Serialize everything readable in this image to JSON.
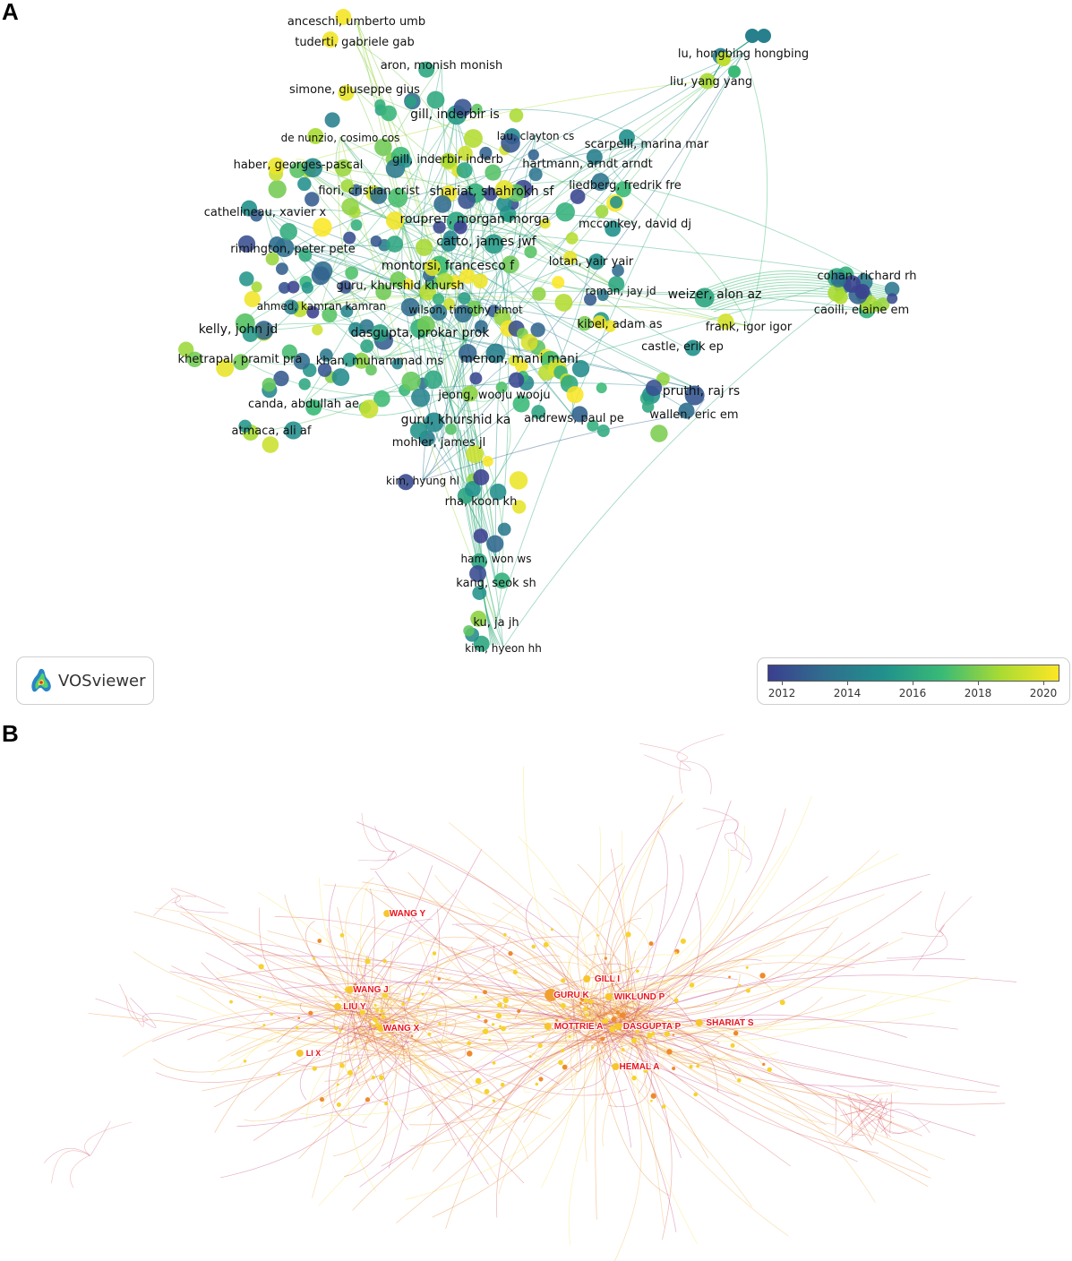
{
  "panel_a": {
    "letter": "A",
    "labels": [
      "anceschi, umberto umb",
      "tuderti, gabriele gab",
      "aron, monish monish",
      "simone, giuseppe gius",
      "gill, inderbir is",
      "de nunzio, cosimo cos",
      "lau, clayton cs",
      "scarpelli, marina mar",
      "haber, georges-pascal",
      "gill, inderbir inderb",
      "hartmann, arndt arndt",
      "fiori, cristian crist",
      "shariat, shahrokh sf",
      "liedberg, fredrik fre",
      "cathelineau, xavier x",
      "rouprет, morgan morga",
      "mcconkey, david dj",
      "catto, james jwf",
      "rimington, peter pete",
      "lotan, yair yair",
      "montorsi, francesco f",
      "cohan, richard rh",
      "guru, khurshid khursh",
      "raman, jay jd",
      "weizer, alon az",
      "ahmed, kamran kamran",
      "wilson, timothy timot",
      "caoili, elaine em",
      "kelly, john jd",
      "kibel, adam as",
      "frank, igor igor",
      "dasgupta, prokar prok",
      "castle, erik ep",
      "khetrapal, pramit pra",
      "khan, muhammad ms",
      "menon, mani mani",
      "pruthi, raj rs",
      "jeong, wooju wooju",
      "canda, abdullah ae",
      "guru, khurshid ka",
      "andrews, paul pe",
      "wallen, eric em",
      "atmaca, ali af",
      "mohler, james jl",
      "kim, hyung hl",
      "rha, koon kh",
      "ham, won ws",
      "kang, seok sh",
      "ku, ja jh",
      "kim, hyeon hh",
      "lu, hongbing hongbing",
      "liu, yang yang"
    ],
    "logo_text": "VOSviewer",
    "logo_icon": "vosviewer-logo-icon",
    "colorbar": {
      "ticks": [
        "2012",
        "2014",
        "2016",
        "2018",
        "2020"
      ],
      "colors": [
        "#3b3f8f",
        "#2f6f8e",
        "#21918c",
        "#3aba76",
        "#a9db33",
        "#fde725"
      ]
    }
  },
  "panel_b": {
    "letter": "B",
    "labels": [
      "WANG Y",
      "GILL I",
      "GURU K",
      "WIKLUND P",
      "WANG J",
      "LIU Y",
      "MOTTRIE A",
      "DASGUPTA P",
      "SHARIAT S",
      "WANG X",
      "LI X",
      "HEMAL A"
    ],
    "label_color": "#e8141e",
    "edge_colors": [
      "#f7e04a",
      "#f5b041",
      "#e67e22",
      "#d9534f",
      "#c0397b"
    ]
  }
}
